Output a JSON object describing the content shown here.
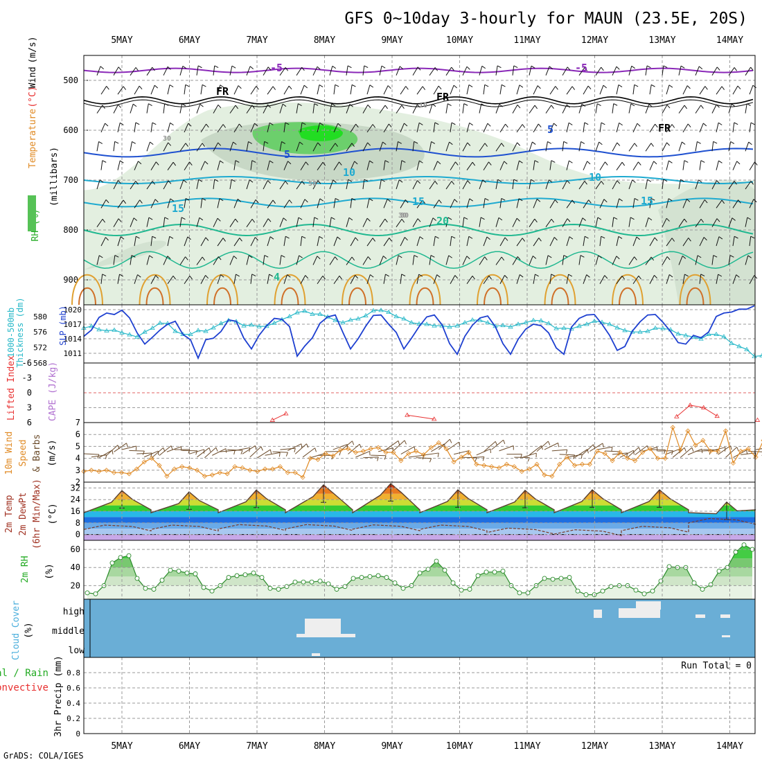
{
  "title": "GFS 0~10day 3-hourly for MAUN (23.5E, 20S)",
  "footer": "GrADS: COLA/IGES",
  "dates": [
    "5MAY",
    "6MAY",
    "7MAY",
    "8MAY",
    "9MAY",
    "10MAY",
    "11MAY",
    "12MAY",
    "13MAY",
    "14MAY"
  ],
  "colors": {
    "slp": "#1d3fd0",
    "thickness": "#26b8c8",
    "lifted": "#e83030",
    "wind10": "#e08a24",
    "barbs": "#6b4b2a",
    "rh2m": "#2a8a2a",
    "cloud": "#6aaed6",
    "temp": "#5a4030",
    "purple": "#8a28b8",
    "freezing": "#000000",
    "blue5": "#1e50d0",
    "cyan10": "#1eaad0",
    "teal20": "#20b890"
  },
  "chart_data": [
    {
      "type": "heatmap",
      "name": "upper-air",
      "ylabel_left": [
        "RH (%)",
        "(millibars)"
      ],
      "ylabel_colored": [
        "Temperature",
        "(°C)",
        "Wind",
        "(m/s)"
      ],
      "ylim": [
        950,
        450
      ],
      "yticks": [
        500,
        600,
        700,
        800,
        900
      ],
      "contour_labels": [
        "-5",
        "-5",
        "FR",
        "FR",
        "FR",
        "5",
        "5",
        "10",
        "10",
        "15",
        "15",
        "15",
        "20",
        "10",
        "30",
        "30",
        "30",
        "50",
        "4"
      ]
    },
    {
      "type": "line",
      "name": "slp-thickness",
      "ylabel_left": "Thickness (dm)",
      "ylabel_left2": "1000-500mb",
      "ylabel_right": "SLP (mb)",
      "left_ticks": [
        "568",
        "572",
        "576",
        "580"
      ],
      "right_ticks": [
        "1011",
        "1014",
        "1017",
        "1020"
      ],
      "slp_ylim": [
        1009,
        1021
      ],
      "thickness_ylim": [
        568,
        583
      ],
      "series": [
        {
          "name": "SLP",
          "values": [
            1014.5,
            1015.8,
            1018.4,
            1019.3,
            1019.0,
            1019.9,
            1018.3,
            1015.2,
            1012.9,
            1014.3,
            1015.8,
            1017.0,
            1017.6,
            1014.9,
            1013.8,
            1010.0,
            1013.8,
            1014.1,
            1015.5,
            1017.9,
            1017.6,
            1014.1,
            1011.9,
            1014.7,
            1016.7,
            1018.2,
            1018.0,
            1016.5,
            1010.4,
            1012.5,
            1014.2,
            1017.2,
            1018.5,
            1018.9,
            1015.3,
            1011.9,
            1014.0,
            1016.6,
            1018.8,
            1018.9,
            1017.0,
            1015.3,
            1011.9,
            1014.1,
            1016.5,
            1018.5,
            1018.9,
            1016.9,
            1013.0,
            1010.8,
            1014.5,
            1016.8,
            1018.3,
            1018.7,
            1016.5,
            1013.0,
            1010.8,
            1013.9,
            1016.0,
            1017.0,
            1016.7,
            1015.2,
            1012.1,
            1010.8,
            1016.4,
            1018.2,
            1018.9,
            1019.0,
            1017.0,
            1014.7,
            1011.6,
            1012.4,
            1015.6,
            1017.5,
            1018.9,
            1019.0,
            1017.4,
            1015.5,
            1013.2,
            1012.9,
            1014.7,
            1014.2,
            1015.4,
            1018.6,
            1019.3,
            1019.5,
            1020.1,
            1020.1,
            1020.8
          ]
        },
        {
          "name": "Thickness",
          "values": [
            577.0,
            577.5,
            576.6,
            576.3,
            576.5,
            575.8,
            575.3,
            574.7,
            576.0,
            577.0,
            578.3,
            578.2,
            576.2,
            575.4,
            575.4,
            576.4,
            576.2,
            577.1,
            578.2,
            579.0,
            578.7,
            577.6,
            577.8,
            577.4,
            577.5,
            578.3,
            579.2,
            580.0,
            581.0,
            581.4,
            580.6,
            580.6,
            579.9,
            579.0,
            578.4,
            579.1,
            579.4,
            580.2,
            581.5,
            581.6,
            581.1,
            580.0,
            579.4,
            578.4,
            578.1,
            578.0,
            577.6,
            577.6,
            577.3,
            577.6,
            578.4,
            579.1,
            579.0,
            578.4,
            577.5,
            577.7,
            577.3,
            578.0,
            578.4,
            579.0,
            578.9,
            578.2,
            576.9,
            577.0,
            576.8,
            577.5,
            578.0,
            578.8,
            578.5,
            578.0,
            577.1,
            576.4,
            576.0,
            576.0,
            576.2,
            577.0,
            576.9,
            576.6,
            575.5,
            575.1,
            574.7,
            574.2,
            575.4,
            575.4,
            574.8,
            573.1,
            572.3,
            571.5,
            569.7,
            569.9
          ]
        }
      ]
    },
    {
      "type": "line",
      "name": "lifted-cape",
      "ylabel_left": "Lifted Index",
      "ylabel_right": "CAPE (J/kg)",
      "yticks": [
        "-6",
        "-3",
        "0",
        "3",
        "6"
      ],
      "ylim": [
        -6,
        6
      ],
      "series": [
        {
          "name": "Lifted Index",
          "segments": [
            [
              [
                1.4,
                5.5
              ],
              [
                1.5,
                4.2
              ]
            ],
            [
              [
                2.4,
                4.5
              ],
              [
                2.6,
                5.3
              ]
            ],
            [
              [
                4.4,
                4.8
              ],
              [
                4.5,
                2.5
              ],
              [
                4.6,
                3.0
              ],
              [
                4.7,
                4.7
              ]
            ],
            [
              [
                5.0,
                5.5
              ]
            ]
          ]
        }
      ]
    },
    {
      "type": "line",
      "name": "wind10m",
      "ylabel_left": "10m Wind",
      "ylabel_left2": "Speed",
      "ylabel_left3": "& Barbs",
      "ylabel_right": "(m/s)",
      "yticks": [
        "2",
        "3",
        "4",
        "5",
        "6",
        "7"
      ],
      "ylim": [
        2,
        7
      ],
      "series": [
        {
          "name": "Speed",
          "values": [
            2.9,
            3.0,
            2.9,
            3.0,
            2.8,
            2.8,
            2.7,
            3.1,
            3.7,
            4.0,
            3.4,
            2.5,
            3.1,
            3.3,
            3.2,
            3.0,
            2.5,
            2.6,
            2.8,
            2.7,
            3.3,
            3.2,
            3.0,
            2.9,
            3.1,
            3.1,
            3.3,
            2.8,
            2.8,
            2.4,
            4.0,
            3.9,
            4.4,
            4.2,
            4.7,
            4.8,
            4.5,
            4.6,
            4.8,
            4.9,
            4.5,
            4.5,
            3.8,
            4.4,
            4.6,
            4.3,
            4.9,
            5.3,
            4.8,
            3.7,
            4.1,
            4.5,
            3.5,
            3.4,
            3.3,
            3.2,
            3.5,
            3.3,
            2.9,
            3.1,
            3.5,
            2.6,
            2.5,
            3.5,
            4.1,
            3.4,
            3.5,
            3.5,
            4.6,
            4.4,
            3.8,
            4.5,
            4.0,
            3.8,
            4.5,
            4.8,
            4.0,
            4.0,
            6.6,
            4.7,
            6.3,
            5.1,
            5.5,
            4.6,
            4.6,
            6.3,
            3.6,
            4.6,
            4.8,
            4.1,
            5.5
          ]
        }
      ]
    },
    {
      "type": "area",
      "name": "temperature",
      "ylabel_left": "2m Temp",
      "ylabel_left2": "2m DewPt",
      "ylabel_left3": "(6hr Min/Max)",
      "ylabel_right": "(°C)",
      "yticks": [
        "0",
        "8",
        "16",
        "24",
        "32"
      ],
      "ylim": [
        -4,
        36
      ],
      "series": [
        {
          "name": "2m Temp",
          "cycle_max": [
            30.2,
            29.3,
            30.5,
            34.1,
            35.0,
            30.7,
            30.4,
            30.7,
            30.7,
            22.3
          ]
        },
        {
          "name": "2m DewPt",
          "cycle_max": [
            6.5,
            6.5,
            6.8,
            6.8,
            6.6,
            6.5,
            4.4,
            3.3,
            5.6,
            11.0
          ]
        }
      ]
    },
    {
      "type": "area",
      "name": "rh2m",
      "ylabel_left": "2m RH",
      "ylabel_right": "(%)",
      "yticks": [
        "20",
        "40",
        "60"
      ],
      "ylim": [
        5,
        70
      ],
      "series": [
        {
          "name": "2m RH",
          "values": [
            12,
            11,
            20,
            45,
            51,
            53,
            28,
            17,
            16,
            26,
            37,
            36,
            34,
            33,
            18,
            14,
            20,
            29,
            31,
            32,
            34,
            29,
            17,
            16,
            19,
            24,
            24,
            24,
            25,
            22,
            16,
            19,
            28,
            29,
            30,
            31,
            29,
            23,
            17,
            20,
            34,
            38,
            47,
            37,
            23,
            15,
            16,
            31,
            35,
            35,
            36,
            20,
            12,
            12,
            20,
            28,
            27,
            28,
            29,
            14,
            10,
            10,
            14,
            19,
            20,
            20,
            15,
            11,
            14,
            25,
            41,
            40,
            40,
            23,
            16,
            21,
            36,
            40,
            57,
            65,
            60
          ]
        }
      ]
    },
    {
      "type": "heatmap",
      "name": "cloud-cover",
      "ylabel_left": "Cloud Cover",
      "ylabel_right": "(%)",
      "yticks": [
        "high",
        "middle",
        "low"
      ]
    },
    {
      "type": "bar",
      "name": "precip",
      "ylabel_left": "Total / Rain",
      "ylabel_left2": "Convective",
      "ylabel_right": "3hr Precip (mm)",
      "yticks": [
        "0",
        "0.2",
        "0.4",
        "0.6",
        "0.8"
      ],
      "ylim": [
        0,
        1
      ],
      "annotation": "Run Total = 0",
      "values": []
    }
  ]
}
